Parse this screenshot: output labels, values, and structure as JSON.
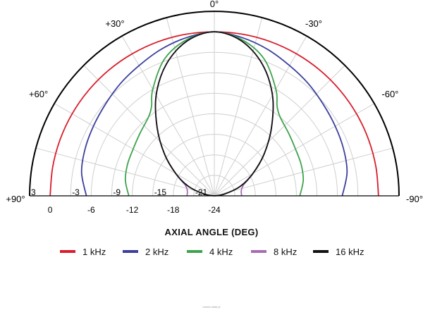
{
  "chart_data": {
    "type": "polar",
    "title": "",
    "xlabel": "AXIAL ANGLE (DEG)",
    "angle_ticks": [
      "+90°",
      "+60°",
      "+30°",
      "0°",
      "-30°",
      "-60°",
      "-90°"
    ],
    "angle_range_deg": [
      -90,
      90
    ],
    "radial_range_db": [
      -24,
      3
    ],
    "radial_ticks_left": [
      "3",
      "-3",
      "-9",
      "-15",
      "-21"
    ],
    "radial_ticks_bottom": [
      "0",
      "-6",
      "-12",
      "-18",
      "-24"
    ],
    "grid": true,
    "legend_position": "bottom",
    "series": [
      {
        "name": "1 kHz",
        "color": "#d81e2c",
        "angles": [
          0,
          10,
          20,
          30,
          40,
          50,
          60,
          70,
          80,
          90
        ],
        "values_db": [
          0,
          0,
          0,
          0,
          0,
          0,
          0,
          0,
          0,
          0
        ]
      },
      {
        "name": "2 kHz",
        "color": "#3c3f9e",
        "angles": [
          0,
          10,
          20,
          30,
          40,
          50,
          60,
          70,
          80,
          90
        ],
        "values_db": [
          0,
          -0.5,
          -1.2,
          -2,
          -2.6,
          -3.2,
          -3.6,
          -3.9,
          -4.3,
          -5.3
        ]
      },
      {
        "name": "4 kHz",
        "color": "#3fa34d",
        "angles": [
          0,
          10,
          20,
          30,
          35,
          40,
          50,
          60,
          70,
          80,
          90
        ],
        "values_db": [
          0,
          -0.8,
          -2.7,
          -6,
          -8,
          -9,
          -9.8,
          -10.3,
          -10.5,
          -10.8,
          -11.5
        ]
      },
      {
        "name": "8 kHz",
        "color": "#a66db3",
        "angles": [
          0,
          10,
          20,
          30,
          40,
          50,
          60,
          70,
          80,
          90
        ],
        "values_db": [
          0,
          -1,
          -3.5,
          -7,
          -11,
          -14.5,
          -17.5,
          -19.5,
          -20,
          -20
        ]
      },
      {
        "name": "16 kHz",
        "color": "#111111",
        "angles": [
          0,
          10,
          20,
          30,
          40,
          50,
          60,
          70,
          80,
          90
        ],
        "values_db": [
          0,
          -1,
          -3.5,
          -7,
          -11,
          -14.5,
          -17.5,
          -20,
          -22.5,
          -24
        ]
      }
    ]
  },
  "watermark": "emmm.bkbl.pl"
}
